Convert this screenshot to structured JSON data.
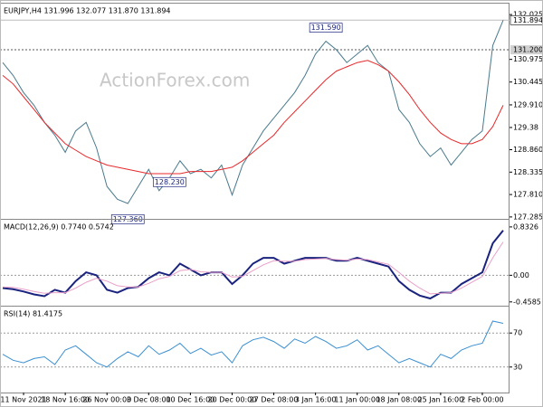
{
  "chart_data": [
    {
      "type": "line",
      "title": "EURJPY,H4 131.996 132.077 131.870 131.894",
      "watermark": "ActionForex.com",
      "ylim": [
        127.24,
        132.26
      ],
      "yticks": [
        132.025,
        {
          "value": 130.975,
          "label": "130.975"
        },
        130.445,
        {
          "value": 129.91,
          "label": "129.910"
        },
        129.38,
        {
          "value": 128.86,
          "label": "128.860"
        },
        128.335,
        {
          "value": 127.81,
          "label": "127.810"
        },
        127.285
      ],
      "hline": {
        "value": 131.2,
        "label": "131.200"
      },
      "last_price": 131.894,
      "annotations": [
        {
          "value": 131.59,
          "label": "131.590"
        },
        {
          "value": 127.36,
          "label": "127.360"
        },
        {
          "value": 128.23,
          "label": "128.230"
        }
      ],
      "series": [
        {
          "color": "#4a7a8c",
          "values": [
            130.9,
            130.6,
            130.2,
            129.9,
            129.5,
            129.2,
            128.8,
            129.3,
            129.5,
            128.9,
            128.0,
            127.7,
            127.6,
            128.0,
            128.4,
            127.9,
            128.2,
            128.6,
            128.3,
            128.4,
            128.2,
            128.5,
            127.8,
            128.5,
            128.9,
            129.3,
            129.6,
            129.9,
            130.2,
            130.6,
            131.1,
            131.4,
            131.2,
            130.9,
            131.1,
            131.3,
            130.9,
            130.7,
            129.8,
            129.5,
            129.0,
            128.7,
            128.9,
            128.5,
            128.8,
            129.1,
            129.3,
            131.3,
            131.894
          ]
        },
        {
          "color": "#e8282b",
          "values": [
            130.6,
            130.4,
            130.1,
            129.8,
            129.5,
            129.25,
            129.0,
            128.85,
            128.7,
            128.6,
            128.5,
            128.45,
            128.4,
            128.35,
            128.3,
            128.3,
            128.3,
            128.3,
            128.35,
            128.35,
            128.35,
            128.4,
            128.45,
            128.6,
            128.8,
            129.0,
            129.2,
            129.5,
            129.75,
            130.0,
            130.25,
            130.5,
            130.7,
            130.8,
            130.9,
            130.95,
            130.85,
            130.7,
            130.45,
            130.15,
            129.8,
            129.5,
            129.25,
            129.1,
            129.0,
            129.0,
            129.1,
            129.4,
            129.9
          ]
        }
      ]
    },
    {
      "type": "line",
      "title": "MACD(12,26,9) 0.7740 0.5742",
      "ylim": [
        -0.524,
        0.94
      ],
      "level_lines": "zero",
      "yticks": [
        0.8326,
        {
          "value": 0,
          "label": "0.00"
        },
        -0.4585
      ],
      "series": [
        {
          "color": "#1a237e",
          "values": [
            -0.22,
            -0.24,
            -0.28,
            -0.33,
            -0.36,
            -0.25,
            -0.3,
            -0.1,
            0.05,
            0.0,
            -0.25,
            -0.3,
            -0.22,
            -0.2,
            -0.05,
            0.05,
            0.0,
            0.2,
            0.1,
            0.0,
            0.05,
            0.05,
            -0.15,
            0.0,
            0.2,
            0.3,
            0.3,
            0.2,
            0.25,
            0.3,
            0.3,
            0.3,
            0.25,
            0.25,
            0.3,
            0.25,
            0.2,
            0.15,
            -0.1,
            -0.25,
            -0.35,
            -0.4,
            -0.3,
            -0.3,
            -0.15,
            -0.05,
            0.05,
            0.55,
            0.774
          ]
        },
        {
          "color": "#e9a0c8",
          "values": [
            -0.2,
            -0.21,
            -0.24,
            -0.28,
            -0.31,
            -0.3,
            -0.3,
            -0.22,
            -0.12,
            -0.05,
            -0.1,
            -0.18,
            -0.2,
            -0.2,
            -0.14,
            -0.06,
            -0.02,
            0.08,
            0.1,
            0.06,
            0.05,
            0.05,
            -0.03,
            -0.02,
            0.08,
            0.18,
            0.25,
            0.24,
            0.24,
            0.27,
            0.28,
            0.29,
            0.27,
            0.26,
            0.28,
            0.27,
            0.23,
            0.19,
            0.05,
            -0.1,
            -0.22,
            -0.32,
            -0.31,
            -0.3,
            -0.22,
            -0.12,
            -0.02,
            0.3,
            0.5742
          ]
        }
      ]
    },
    {
      "type": "line",
      "title": "RSI(14) 81.4175",
      "ylim": [
        0,
        100
      ],
      "level_lines": "ticks",
      "yticks": [
        70,
        30
      ],
      "categories": [
        null,
        null,
        "11 Nov 2021",
        null,
        null,
        null,
        "18 Nov 16:00",
        null,
        null,
        null,
        "26 Nov 00:00",
        null,
        null,
        null,
        "3 Dec 08:00",
        null,
        null,
        null,
        "10 Dec 16:00",
        null,
        null,
        null,
        "20 Dec 00:00",
        null,
        null,
        null,
        "27 Dec 08:00",
        null,
        null,
        null,
        "3 Jan 16:00",
        null,
        null,
        null,
        "11 Jan 00:00",
        null,
        null,
        null,
        "18 Jan 08:00",
        null,
        null,
        null,
        "25 Jan 16:00",
        null,
        null,
        null,
        "2 Feb 00:00",
        null,
        null
      ],
      "series": [
        {
          "color": "#3a8fd0",
          "values": [
            45,
            38,
            35,
            40,
            42,
            33,
            50,
            55,
            45,
            35,
            30,
            40,
            48,
            42,
            55,
            45,
            50,
            58,
            46,
            52,
            44,
            48,
            35,
            55,
            62,
            65,
            60,
            52,
            63,
            58,
            66,
            60,
            52,
            55,
            62,
            50,
            55,
            45,
            35,
            40,
            35,
            30,
            45,
            40,
            50,
            55,
            58,
            84,
            81.4175
          ]
        }
      ]
    }
  ]
}
